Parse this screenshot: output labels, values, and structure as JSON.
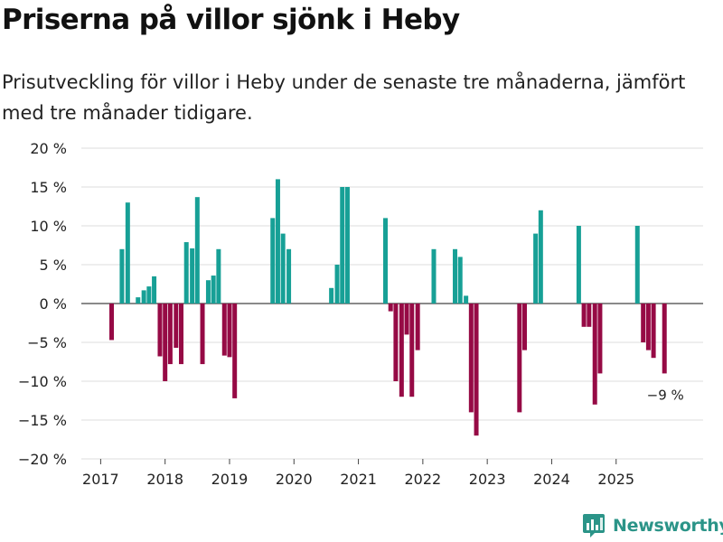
{
  "title": "Priserna på villor sjönk i Heby",
  "subtitle": "Prisutveckling för villor i Heby under de senaste tre månaderna, jämfört med tre månader tidigare.",
  "brand": {
    "name": "Newsworthy",
    "icon": "newsworthy-logo-icon",
    "color": "#2b9488"
  },
  "colors": {
    "positive": "#17a096",
    "negative": "#960a45",
    "grid": "#dddddd",
    "axis": "#444444"
  },
  "chart_data": {
    "type": "bar",
    "title": "Priserna på villor sjönk i Heby",
    "xlabel": "",
    "ylabel": "",
    "unit": "%",
    "ylim": [
      -20,
      20
    ],
    "yticks": [
      20,
      15,
      10,
      5,
      0,
      -5,
      -10,
      -15,
      -20
    ],
    "ytick_labels": [
      "20 %",
      "15 %",
      "10 %",
      "5 %",
      "0 %",
      "−5 %",
      "−10 %",
      "−15 %",
      "−20 %"
    ],
    "xlim": [
      2016.7,
      2026.35
    ],
    "xticks": [
      2017,
      2018,
      2019,
      2020,
      2021,
      2022,
      2023,
      2024,
      2025
    ],
    "xtick_labels": [
      "2017",
      "2018",
      "2019",
      "2020",
      "2021",
      "2022",
      "2023",
      "2024",
      "2025"
    ],
    "grid": true,
    "series": [
      {
        "name": "Prisutveckling",
        "x": [
          2017.17,
          2017.33,
          2017.42,
          2017.58,
          2017.67,
          2017.75,
          2017.83,
          2017.92,
          2018.0,
          2018.08,
          2018.17,
          2018.25,
          2018.33,
          2018.42,
          2018.5,
          2018.58,
          2018.67,
          2018.75,
          2018.83,
          2018.92,
          2019.0,
          2019.08,
          2019.67,
          2019.75,
          2019.83,
          2019.92,
          2020.58,
          2020.67,
          2020.75,
          2020.83,
          2021.42,
          2021.5,
          2021.58,
          2021.67,
          2021.75,
          2021.83,
          2021.92,
          2022.0,
          2022.17,
          2022.5,
          2022.58,
          2022.67,
          2022.75,
          2022.83,
          2023.5,
          2023.58,
          2023.75,
          2023.83,
          2024.42,
          2024.5,
          2024.58,
          2024.67,
          2024.75,
          2025.33,
          2025.42,
          2025.5,
          2025.58,
          2025.75
        ],
        "values": [
          -4.7,
          7,
          13,
          0.8,
          1.7,
          2.2,
          3.5,
          -6.8,
          -10,
          -7.8,
          -5.7,
          -7.8,
          7.9,
          7.1,
          13.7,
          -7.8,
          3,
          3.6,
          7,
          -6.7,
          -6.9,
          -12.2,
          11,
          16,
          9,
          7,
          2,
          5,
          15,
          15,
          11,
          -1,
          -10,
          -12,
          -4,
          -12,
          -6,
          0,
          7,
          7,
          6,
          1,
          -14,
          -17,
          -14,
          -6,
          9,
          12,
          10,
          -3,
          -3,
          -13,
          -9,
          10,
          -5,
          -6,
          -7,
          -9
        ]
      }
    ],
    "annotations": [
      {
        "text": "−9 %",
        "x": 2025.75,
        "y": -9
      }
    ]
  }
}
